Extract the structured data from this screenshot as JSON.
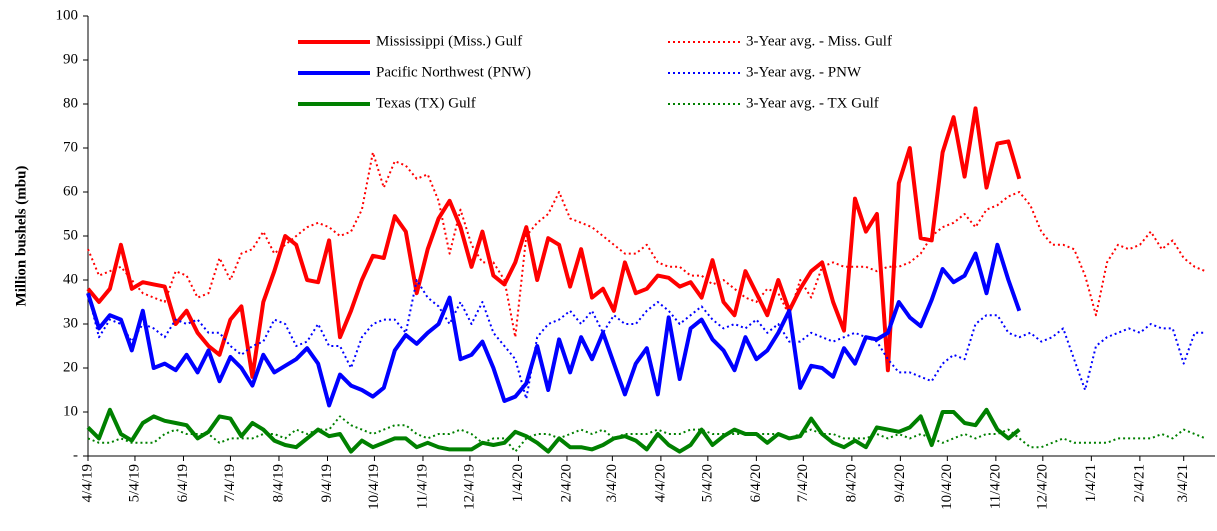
{
  "chart_data": {
    "type": "line",
    "y_label": "Million bushels (mbu)",
    "ylim": [
      0,
      100
    ],
    "yticks": [
      {
        "value": 0,
        "label": "-"
      },
      10,
      20,
      30,
      40,
      50,
      60,
      70,
      80,
      90,
      100
    ],
    "xlim": [
      "4/4/19",
      "3/24/21"
    ],
    "xticks": [
      "4/4/19",
      "5/4/19",
      "6/4/19",
      "7/4/19",
      "8/4/19",
      "9/4/19",
      "10/4/19",
      "11/4/19",
      "12/4/19",
      "1/4/20",
      "2/4/20",
      "3/4/20",
      "4/4/20",
      "5/4/20",
      "6/4/20",
      "7/4/20",
      "8/4/20",
      "9/4/20",
      "10/4/20",
      "11/4/20",
      "12/4/20",
      "1/4/21",
      "2/4/21",
      "3/4/21"
    ],
    "grid": false,
    "x": [
      "4/4/19",
      "4/11/19",
      "4/18/19",
      "4/25/19",
      "5/2/19",
      "5/9/19",
      "5/16/19",
      "5/23/19",
      "5/30/19",
      "6/6/19",
      "6/13/19",
      "6/20/19",
      "6/27/19",
      "7/4/19",
      "7/11/19",
      "7/18/19",
      "7/25/19",
      "8/1/19",
      "8/8/19",
      "8/15/19",
      "8/22/19",
      "8/29/19",
      "9/5/19",
      "9/12/19",
      "9/19/19",
      "9/26/19",
      "10/3/19",
      "10/10/19",
      "10/17/19",
      "10/24/19",
      "10/31/19",
      "11/7/19",
      "11/14/19",
      "11/21/19",
      "11/28/19",
      "12/5/19",
      "12/12/19",
      "12/19/19",
      "12/26/19",
      "1/2/20",
      "1/9/20",
      "1/16/20",
      "1/23/20",
      "1/30/20",
      "2/6/20",
      "2/13/20",
      "2/20/20",
      "2/27/20",
      "3/5/20",
      "3/12/20",
      "3/19/20",
      "3/26/20",
      "4/2/20",
      "4/9/20",
      "4/16/20",
      "4/23/20",
      "4/30/20",
      "5/7/20",
      "5/14/20",
      "5/21/20",
      "5/28/20",
      "6/4/20",
      "6/11/20",
      "6/18/20",
      "6/25/20",
      "7/2/20",
      "7/9/20",
      "7/16/20",
      "7/23/20",
      "7/30/20",
      "8/6/20",
      "8/13/20",
      "8/20/20",
      "8/27/20",
      "9/3/20",
      "9/10/20",
      "9/17/20",
      "9/24/20",
      "10/1/20",
      "10/8/20",
      "10/15/20",
      "10/22/20",
      "10/29/20",
      "11/5/20",
      "11/12/20",
      "11/19/20",
      "11/26/20",
      "12/3/20",
      "12/10/20",
      "12/17/20",
      "12/24/20",
      "12/31/20",
      "1/7/21",
      "1/14/21",
      "1/21/21",
      "1/28/21",
      "2/4/21",
      "2/11/21",
      "2/18/21",
      "2/25/21",
      "3/4/21",
      "3/11/21",
      "3/18/21"
    ],
    "series": [
      {
        "name": "Mississippi (Miss.) Gulf",
        "color": "#ff0000",
        "line_style": "solid",
        "values": [
          38,
          35,
          38,
          48,
          38,
          39.5,
          39,
          38.5,
          30,
          33,
          28,
          25,
          23,
          31,
          34,
          18,
          35,
          42,
          50,
          48,
          40,
          39.5,
          49,
          27,
          33,
          40,
          45.5,
          45,
          54.5,
          51,
          37,
          47,
          54,
          58,
          52,
          43,
          51,
          41,
          39,
          44,
          52,
          40,
          49.5,
          48,
          38.5,
          47,
          36,
          38,
          33,
          44,
          37,
          38,
          41,
          40.5,
          38.5,
          39.5,
          36,
          44.5,
          35,
          32,
          42,
          37,
          32,
          40,
          33,
          38,
          42,
          44,
          35,
          28.5,
          58.5,
          51,
          55,
          19.5,
          62,
          70,
          49.5,
          49,
          69,
          77,
          63.5,
          79,
          61,
          71,
          71.5,
          63,
          null,
          null,
          null,
          null,
          null,
          null,
          null,
          null,
          null,
          null,
          null,
          null,
          null,
          null,
          null,
          null,
          null
        ]
      },
      {
        "name": "3-Year avg. - Miss. Gulf",
        "color": "#ff0000",
        "line_style": "dotted",
        "values": [
          47,
          41,
          42,
          43,
          40,
          37,
          36,
          35,
          42,
          41,
          36,
          37,
          45,
          40,
          46,
          47,
          51,
          46,
          48,
          50,
          52,
          53,
          52,
          50,
          51,
          56,
          69,
          61,
          67,
          66,
          63,
          64,
          58,
          46,
          56,
          48,
          44,
          44,
          40,
          27,
          50,
          53,
          55,
          60,
          54,
          53,
          52,
          50,
          48,
          46,
          46,
          48,
          44,
          43,
          43,
          41,
          41,
          39,
          40,
          38,
          36,
          35,
          38,
          37,
          32,
          40,
          36,
          43,
          44,
          43,
          43,
          43,
          42,
          43,
          43,
          44,
          46,
          50,
          52,
          53,
          55,
          52,
          56,
          57,
          59,
          60,
          57,
          51,
          48,
          48,
          47,
          41,
          32,
          44,
          48,
          47,
          48,
          51,
          47,
          49,
          45,
          43,
          42
        ]
      },
      {
        "name": "Pacific Northwest (PNW)",
        "color": "#0000ff",
        "line_style": "solid",
        "values": [
          37,
          29,
          32,
          31,
          24,
          33,
          20,
          21,
          19.5,
          23,
          19,
          24,
          17,
          22.5,
          20,
          16,
          23,
          19,
          20.5,
          22,
          24.5,
          21,
          11.5,
          18.5,
          16,
          15,
          13.5,
          15.5,
          24,
          27.5,
          25.5,
          28,
          30,
          36,
          22,
          23,
          26,
          20,
          12.5,
          13.5,
          16.5,
          25,
          15,
          26.5,
          19,
          27,
          22,
          28,
          21,
          14,
          21,
          24.5,
          14,
          31.5,
          17.5,
          29,
          31,
          26.5,
          24,
          19.5,
          27,
          22,
          24,
          28,
          33,
          15.5,
          20.5,
          20,
          18,
          24.5,
          21,
          27,
          26.5,
          28,
          35,
          31.5,
          29.5,
          35.5,
          42.5,
          39.5,
          41,
          46,
          37,
          48,
          40,
          33,
          null,
          null,
          null,
          null,
          null,
          null,
          null,
          null,
          null,
          null,
          null,
          null,
          null,
          null,
          null,
          null,
          null
        ]
      },
      {
        "name": "3-Year avg. - PNW",
        "color": "#0000ff",
        "line_style": "dotted",
        "values": [
          37,
          27,
          31,
          30,
          26,
          30,
          29,
          27,
          31,
          30,
          31,
          28,
          28,
          25,
          23,
          25,
          26,
          31,
          30,
          25,
          26,
          30,
          25,
          25,
          20,
          27,
          30,
          31,
          31,
          28,
          40,
          36,
          34,
          30,
          35,
          30,
          35,
          28,
          25,
          22,
          13,
          27,
          30,
          31,
          33,
          30,
          33,
          28,
          32,
          30,
          30,
          33,
          35,
          33,
          30,
          32,
          34,
          31,
          29,
          30,
          29,
          31,
          28,
          30,
          26,
          26,
          28,
          27,
          26,
          27,
          28,
          27,
          26,
          22,
          19,
          19,
          18,
          17,
          21,
          23,
          22,
          30,
          32,
          32,
          28,
          27,
          28,
          26,
          27,
          29,
          22,
          15,
          25,
          27,
          28,
          29,
          28,
          30,
          29,
          29,
          21,
          28,
          28
        ]
      },
      {
        "name": "Texas (TX) Gulf",
        "color": "#008000",
        "line_style": "solid",
        "values": [
          6.5,
          4,
          10.5,
          5,
          3.5,
          7.5,
          9,
          8,
          7.5,
          7,
          4,
          5.5,
          9,
          8.5,
          4.5,
          7.5,
          6,
          3.5,
          2.5,
          2,
          4,
          6,
          4.5,
          5,
          1,
          3.5,
          2,
          3,
          4,
          4,
          2,
          3,
          2,
          1.5,
          1.5,
          1.5,
          3,
          2.5,
          3,
          5.5,
          4.5,
          3,
          1,
          4,
          2,
          2,
          1.5,
          2.5,
          4,
          4.5,
          3.5,
          1.5,
          5,
          2.5,
          1,
          2.5,
          6,
          2.5,
          4.5,
          6,
          5,
          5,
          3,
          5,
          4,
          4.5,
          8.5,
          5,
          3,
          2,
          3.5,
          2,
          6.5,
          6,
          5.5,
          6.5,
          9,
          2.5,
          10,
          10,
          7.5,
          7,
          10.5,
          6,
          4,
          6,
          null,
          null,
          null,
          null,
          null,
          null,
          null,
          null,
          null,
          null,
          null,
          null,
          null,
          null,
          null,
          null,
          null
        ]
      },
      {
        "name": "3-Year avg. - TX Gulf",
        "color": "#008000",
        "line_style": "dotted",
        "values": [
          4,
          3,
          3,
          4,
          3,
          3,
          3,
          5,
          6,
          5,
          5,
          5,
          3,
          4,
          4,
          4,
          5,
          5,
          4,
          6,
          5,
          6,
          6,
          9,
          7,
          6,
          5,
          6,
          7,
          7,
          5,
          4,
          5,
          5,
          6,
          5,
          3,
          4,
          4,
          1,
          4,
          5,
          5,
          4,
          5,
          6,
          5,
          6,
          4,
          5,
          5,
          5,
          6,
          5,
          5,
          6,
          6,
          5,
          5,
          5,
          5,
          5,
          5,
          5,
          4,
          5,
          6,
          5,
          5,
          4,
          4,
          4,
          5,
          4,
          5,
          4,
          5,
          4,
          3,
          4,
          5,
          4,
          5,
          5,
          6,
          4,
          2,
          2,
          3,
          4,
          3,
          3,
          3,
          3,
          4,
          4,
          4,
          4,
          5,
          4,
          6,
          5,
          4
        ]
      }
    ]
  }
}
